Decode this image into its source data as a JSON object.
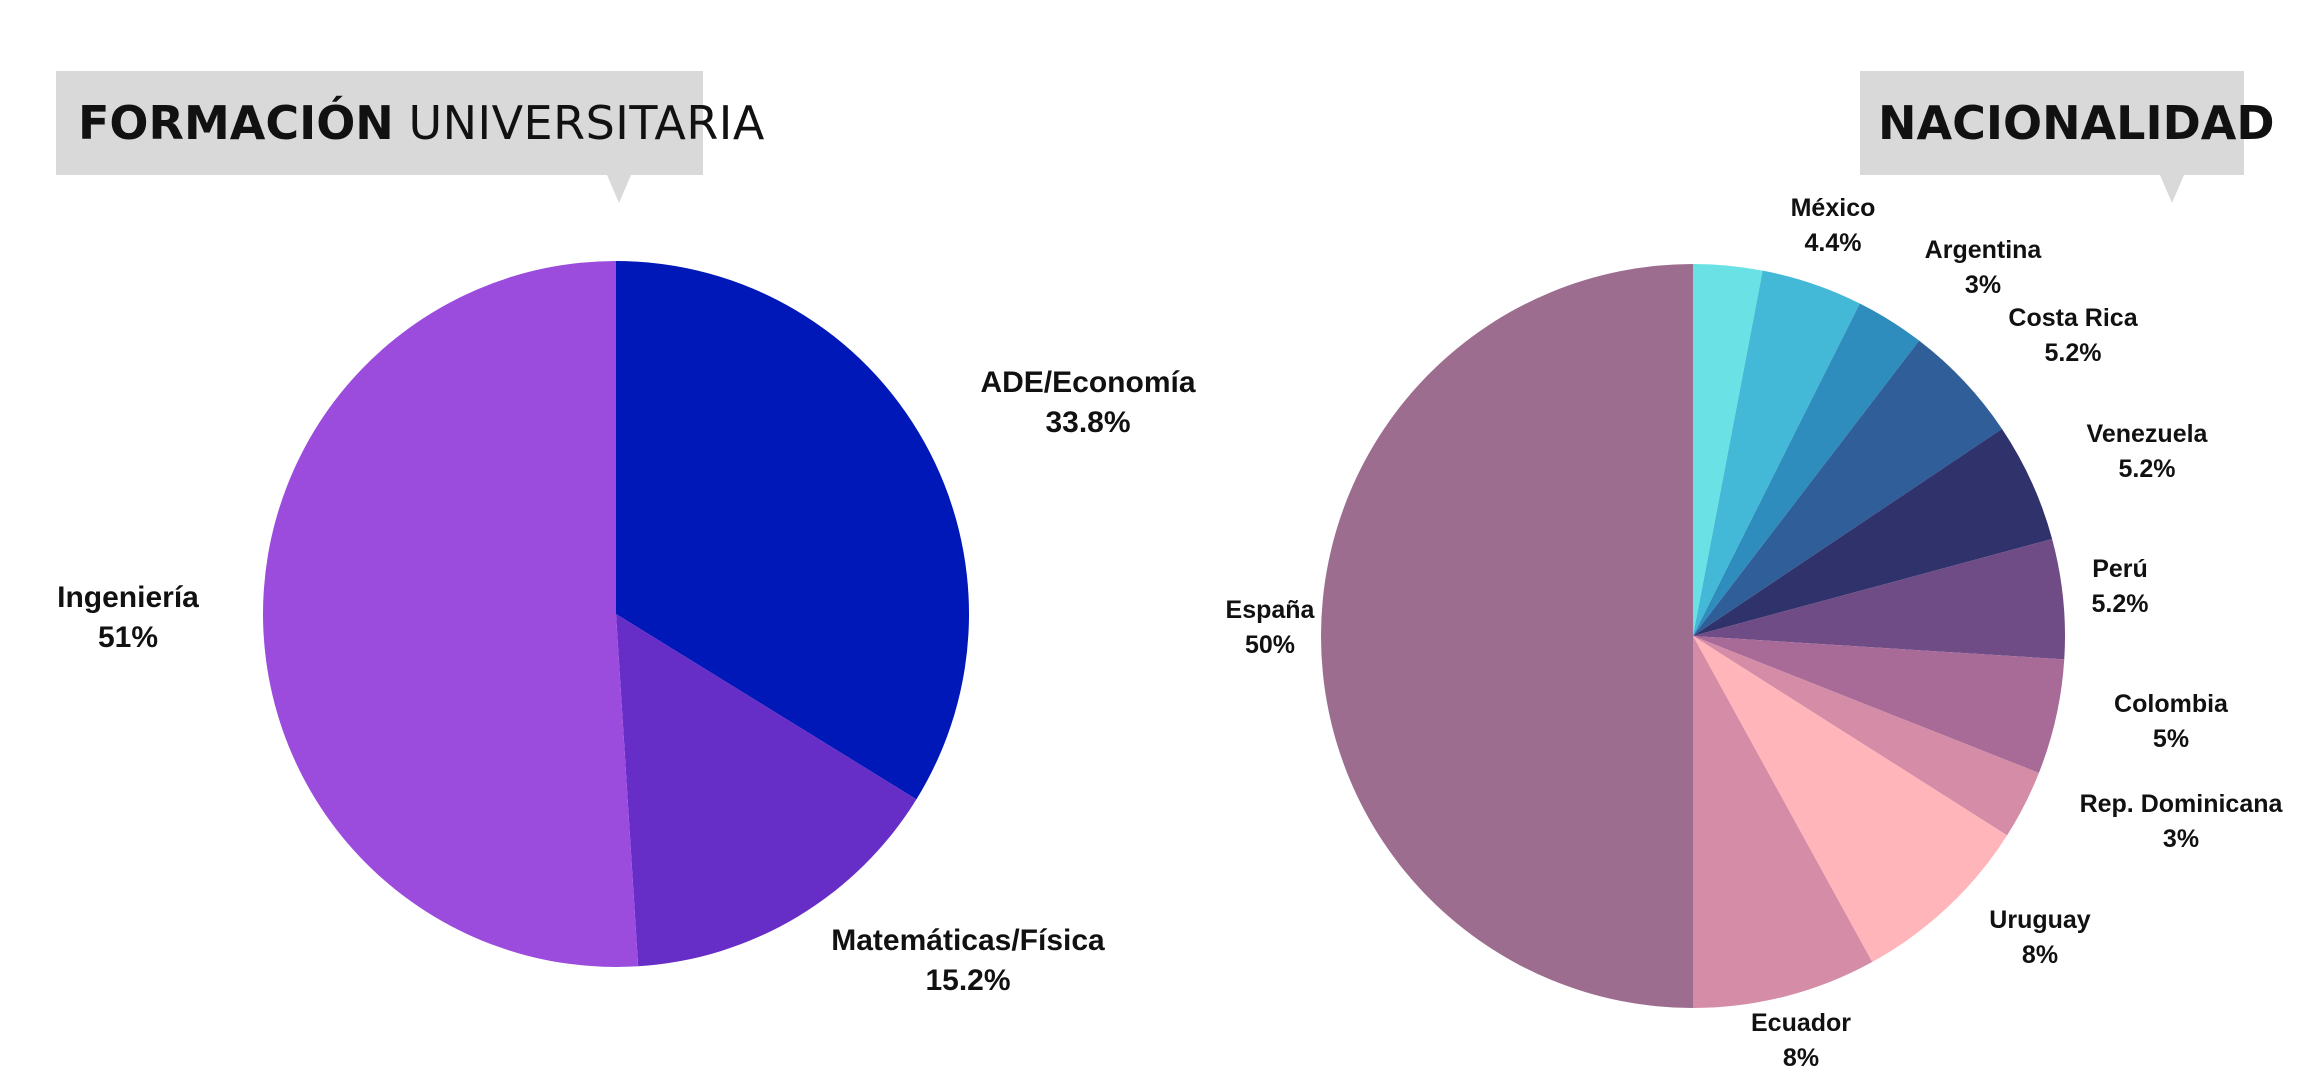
{
  "titles": {
    "left_bold": "FORMACIÓN",
    "left_light": "UNIVERSITARIA",
    "right": "NACIONALIDAD"
  },
  "chart_data": [
    {
      "type": "pie",
      "title": "FORMACIÓN UNIVERSITARIA",
      "slices": [
        {
          "label": "ADE/Economía",
          "value": 33.8,
          "display": "33.8%",
          "color": "#0018b8"
        },
        {
          "label": "Matemáticas/Física",
          "value": 15.2,
          "display": "15.2%",
          "color": "#672dc7"
        },
        {
          "label": "Ingeniería",
          "value": 51,
          "display": "51%",
          "color": "#9c4cdc"
        }
      ]
    },
    {
      "type": "pie",
      "title": "NACIONALIDAD",
      "slices": [
        {
          "label": "",
          "value": 3,
          "display": "",
          "color": "#6ae2e5"
        },
        {
          "label": "México",
          "value": 4.4,
          "display": "4.4%",
          "color": "#44b8d7"
        },
        {
          "label": "Argentina",
          "value": 3,
          "display": "3%",
          "color": "#2e8dbd"
        },
        {
          "label": "Costa Rica",
          "value": 5.2,
          "display": "5.2%",
          "color": "#2f5e98"
        },
        {
          "label": "Venezuela",
          "value": 5.2,
          "display": "5.2%",
          "color": "#30336b"
        },
        {
          "label": "Perú",
          "value": 5.2,
          "display": "5.2%",
          "color": "#6f4c86"
        },
        {
          "label": "Colombia",
          "value": 5,
          "display": "5%",
          "color": "#a86b97"
        },
        {
          "label": "Rep. Dominicana",
          "value": 3,
          "display": "3%",
          "color": "#d48ca7"
        },
        {
          "label": "Uruguay",
          "value": 8,
          "display": "8%",
          "color": "#ffb5b9"
        },
        {
          "label": "Ecuador",
          "value": 8,
          "display": "8%",
          "color": "#d48ca7"
        },
        {
          "label": "España",
          "value": 50,
          "display": "50%",
          "color": "#9c6d8f"
        }
      ]
    }
  ]
}
